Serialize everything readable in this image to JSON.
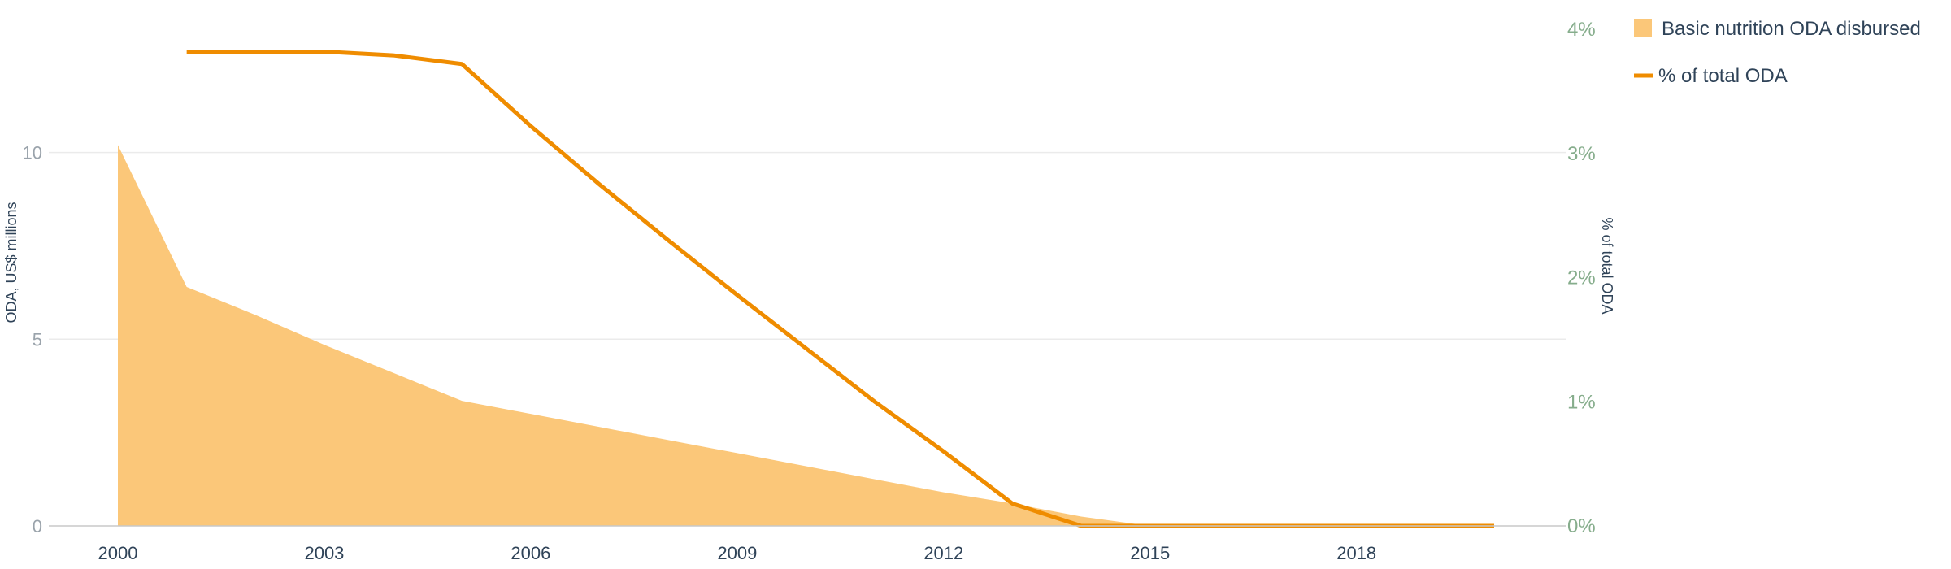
{
  "chart_data": {
    "type": "area",
    "title": "",
    "x": [
      2000,
      2001,
      2002,
      2003,
      2004,
      2005,
      2006,
      2007,
      2008,
      2009,
      2010,
      2011,
      2012,
      2013,
      2014,
      2015,
      2016,
      2017,
      2018,
      2019,
      2020
    ],
    "x_ticks": [
      "2000",
      "2003",
      "2006",
      "2009",
      "2012",
      "2015",
      "2018"
    ],
    "xlim": [
      2000,
      2020
    ],
    "y_left": {
      "label": "ODA, US$ millions",
      "ylim": [
        0,
        13.3
      ],
      "ticks": [
        {
          "value": 0,
          "label": "0"
        },
        {
          "value": 5,
          "label": "5"
        },
        {
          "value": 10,
          "label": "10"
        }
      ]
    },
    "y_right": {
      "label": "% of total ODA",
      "ylim": [
        0,
        4.0
      ],
      "ticks": [
        {
          "value": 0,
          "label": "0%"
        },
        {
          "value": 1,
          "label": "1%"
        },
        {
          "value": 2,
          "label": "2%"
        },
        {
          "value": 3,
          "label": "3%"
        },
        {
          "value": 4,
          "label": "4%"
        }
      ]
    },
    "series": [
      {
        "name": "Basic nutrition ODA disbursed",
        "type": "area",
        "axis": "left",
        "color": "#fbc779",
        "values": [
          10.2,
          6.4,
          5.65,
          4.85,
          4.1,
          3.35,
          3.0,
          2.65,
          2.3,
          1.95,
          1.6,
          1.25,
          0.9,
          0.6,
          0.25,
          0.0,
          0.0,
          0.0,
          0.0,
          0.0,
          0.0
        ]
      },
      {
        "name": "% of total ODA",
        "type": "line",
        "axis": "right",
        "color": "#ef8c00",
        "values": [
          null,
          3.82,
          3.82,
          3.82,
          3.79,
          3.72,
          3.22,
          2.75,
          2.3,
          1.86,
          1.43,
          1.0,
          0.6,
          0.18,
          0.0,
          0.0,
          0.0,
          0.0,
          0.0,
          0.0,
          0.0
        ]
      }
    ],
    "grid": true,
    "legend_position": "top-right"
  }
}
